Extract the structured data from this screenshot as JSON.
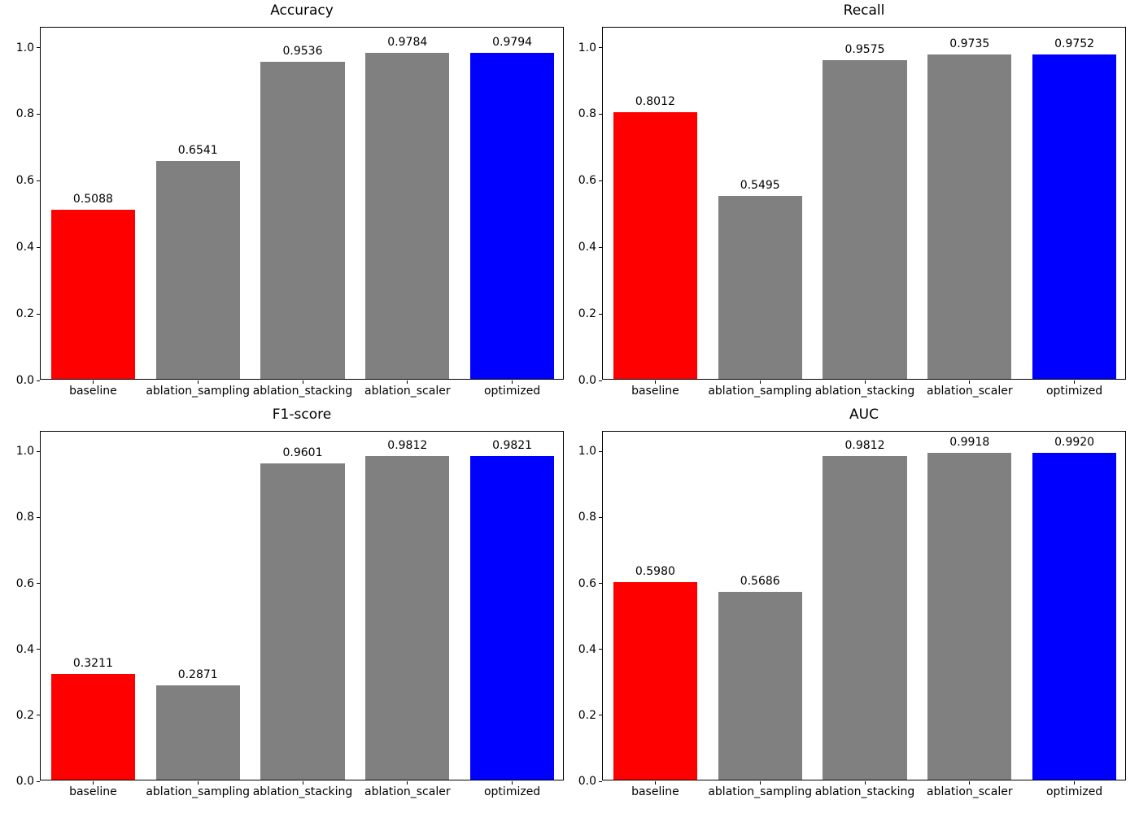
{
  "figure": {
    "background": "#ffffff",
    "axis_color": "#000000",
    "text_color": "#000000"
  },
  "chart_data": [
    {
      "type": "bar",
      "title": "Accuracy",
      "categories": [
        "baseline",
        "ablation_sampling",
        "ablation_stacking",
        "ablation_scaler",
        "optimized"
      ],
      "values": [
        0.5088,
        0.6541,
        0.9536,
        0.9784,
        0.9794
      ],
      "value_labels": [
        "0.5088",
        "0.6541",
        "0.9536",
        "0.9784",
        "0.9794"
      ],
      "bar_colors": [
        "#ff0000",
        "#808080",
        "#808080",
        "#808080",
        "#0000ff"
      ],
      "xlabel": "",
      "ylabel": "",
      "ylim": [
        0,
        1.06
      ],
      "yticks": [
        0.0,
        0.2,
        0.4,
        0.6,
        0.8,
        1.0
      ],
      "ytick_labels": [
        "0.0",
        "0.2",
        "0.4",
        "0.6",
        "0.8",
        "1.0"
      ],
      "grid": false,
      "legend": "none"
    },
    {
      "type": "bar",
      "title": "Recall",
      "categories": [
        "baseline",
        "ablation_sampling",
        "ablation_stacking",
        "ablation_scaler",
        "optimized"
      ],
      "values": [
        0.8012,
        0.5495,
        0.9575,
        0.9735,
        0.9752
      ],
      "value_labels": [
        "0.8012",
        "0.5495",
        "0.9575",
        "0.9735",
        "0.9752"
      ],
      "bar_colors": [
        "#ff0000",
        "#808080",
        "#808080",
        "#808080",
        "#0000ff"
      ],
      "xlabel": "",
      "ylabel": "",
      "ylim": [
        0,
        1.06
      ],
      "yticks": [
        0.0,
        0.2,
        0.4,
        0.6,
        0.8,
        1.0
      ],
      "ytick_labels": [
        "0.0",
        "0.2",
        "0.4",
        "0.6",
        "0.8",
        "1.0"
      ],
      "grid": false,
      "legend": "none"
    },
    {
      "type": "bar",
      "title": "F1-score",
      "categories": [
        "baseline",
        "ablation_sampling",
        "ablation_stacking",
        "ablation_scaler",
        "optimized"
      ],
      "values": [
        0.3211,
        0.2871,
        0.9601,
        0.9812,
        0.9821
      ],
      "value_labels": [
        "0.3211",
        "0.2871",
        "0.9601",
        "0.9812",
        "0.9821"
      ],
      "bar_colors": [
        "#ff0000",
        "#808080",
        "#808080",
        "#808080",
        "#0000ff"
      ],
      "xlabel": "",
      "ylabel": "",
      "ylim": [
        0,
        1.06
      ],
      "yticks": [
        0.0,
        0.2,
        0.4,
        0.6,
        0.8,
        1.0
      ],
      "ytick_labels": [
        "0.0",
        "0.2",
        "0.4",
        "0.6",
        "0.8",
        "1.0"
      ],
      "grid": false,
      "legend": "none"
    },
    {
      "type": "bar",
      "title": "AUC",
      "categories": [
        "baseline",
        "ablation_sampling",
        "ablation_stacking",
        "ablation_scaler",
        "optimized"
      ],
      "values": [
        0.598,
        0.5686,
        0.9812,
        0.9918,
        0.992
      ],
      "value_labels": [
        "0.5980",
        "0.5686",
        "0.9812",
        "0.9918",
        "0.9920"
      ],
      "bar_colors": [
        "#ff0000",
        "#808080",
        "#808080",
        "#808080",
        "#0000ff"
      ],
      "xlabel": "",
      "ylabel": "",
      "ylim": [
        0,
        1.06
      ],
      "yticks": [
        0.0,
        0.2,
        0.4,
        0.6,
        0.8,
        1.0
      ],
      "ytick_labels": [
        "0.0",
        "0.2",
        "0.4",
        "0.6",
        "0.8",
        "1.0"
      ],
      "grid": false,
      "legend": "none"
    }
  ]
}
